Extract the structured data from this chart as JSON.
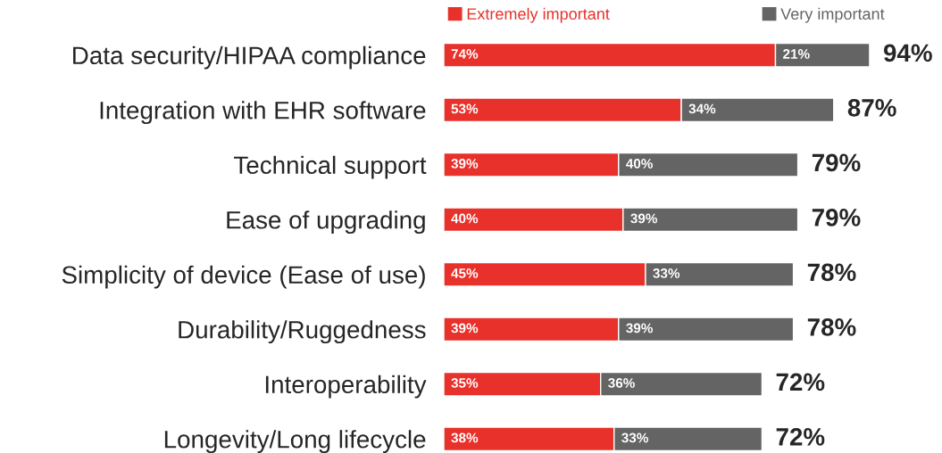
{
  "chart_data": {
    "type": "bar",
    "orientation": "horizontal",
    "stacked": true,
    "categories": [
      "Data security/HIPAA compliance",
      "Integration with EHR software",
      "Technical support",
      "Ease of upgrading",
      "Simplicity of device (Ease of use)",
      "Durability/Ruggedness",
      "Interoperability",
      "Longevity/Long lifecycle"
    ],
    "series": [
      {
        "name": "Extremely important",
        "color": "#e8312a",
        "values": [
          74,
          53,
          39,
          40,
          45,
          39,
          35,
          38
        ],
        "value_labels": [
          "74%",
          "53%",
          "39%",
          "40%",
          "45%",
          "39%",
          "35%",
          "38%"
        ]
      },
      {
        "name": "Very important",
        "color": "#646464",
        "values": [
          21,
          34,
          40,
          39,
          33,
          39,
          36,
          33
        ],
        "value_labels": [
          "21%",
          "34%",
          "40%",
          "39%",
          "33%",
          "39%",
          "36%",
          "33%"
        ]
      }
    ],
    "totals": [
      "94%",
      "87%",
      "79%",
      "79%",
      "78%",
      "78%",
      "72%",
      "72%"
    ],
    "tick_labels": "y",
    "legend": "top",
    "grid": false
  }
}
